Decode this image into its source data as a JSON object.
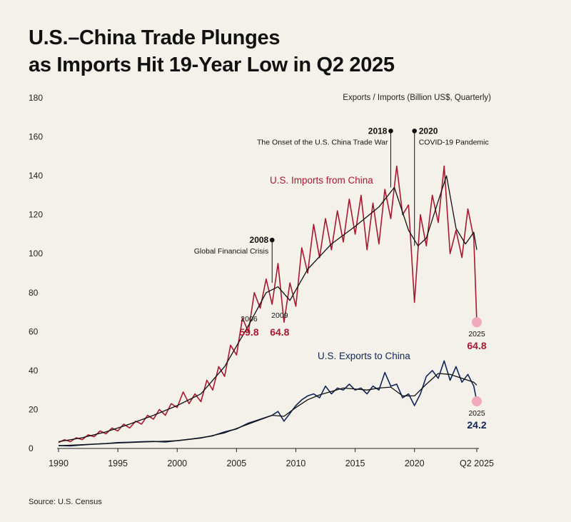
{
  "title_line1": "U.S.–China Trade Plunges",
  "title_line2": "as Imports Hit 19-Year Low in Q2 2025",
  "source": "Source: U.S. Census",
  "colors": {
    "imports": "#a8182f",
    "exports": "#0f2556",
    "trend": "#111111",
    "highlight": "#f0a8bc",
    "axis": "#222222"
  },
  "chart_data": {
    "type": "line",
    "title": "U.S.–China Trade Plunges as Imports Hit 19-Year Low in Q2 2025",
    "ylabel": "Exports / Imports (Billion US$, Quarterly)",
    "xlim": [
      1990,
      2025.5
    ],
    "ylim": [
      0,
      180
    ],
    "y_ticks": [
      0,
      20,
      40,
      60,
      80,
      100,
      120,
      140,
      160,
      180
    ],
    "x_ticks": [
      {
        "value": 1990,
        "label": "1990"
      },
      {
        "value": 1995,
        "label": "1995"
      },
      {
        "value": 2000,
        "label": "2000"
      },
      {
        "value": 2005,
        "label": "2005"
      },
      {
        "value": 2010,
        "label": "2010"
      },
      {
        "value": 2015,
        "label": "2015"
      },
      {
        "value": 2020,
        "label": "2020"
      },
      {
        "value": 2025.25,
        "label": "Q2 2025"
      }
    ],
    "series": [
      {
        "name": "U.S. Imports from China",
        "label": "U.S. Imports from China",
        "points": [
          [
            1990,
            3
          ],
          [
            1990.5,
            4.5
          ],
          [
            1991,
            3.5
          ],
          [
            1991.5,
            5.5
          ],
          [
            1992,
            4.5
          ],
          [
            1992.5,
            7
          ],
          [
            1993,
            6
          ],
          [
            1993.5,
            9
          ],
          [
            1994,
            7.5
          ],
          [
            1994.5,
            10.5
          ],
          [
            1995,
            9
          ],
          [
            1995.5,
            12.5
          ],
          [
            1996,
            10.5
          ],
          [
            1996.5,
            14
          ],
          [
            1997,
            12.5
          ],
          [
            1997.5,
            17
          ],
          [
            1998,
            15
          ],
          [
            1998.5,
            20
          ],
          [
            1999,
            17
          ],
          [
            1999.5,
            23
          ],
          [
            2000,
            21
          ],
          [
            2000.5,
            29
          ],
          [
            2001,
            23
          ],
          [
            2001.5,
            28
          ],
          [
            2002,
            24
          ],
          [
            2002.5,
            35
          ],
          [
            2003,
            30
          ],
          [
            2003.5,
            42
          ],
          [
            2004,
            37
          ],
          [
            2004.5,
            53
          ],
          [
            2005,
            48
          ],
          [
            2005.5,
            67
          ],
          [
            2006,
            59.8
          ],
          [
            2006.5,
            80
          ],
          [
            2007,
            72
          ],
          [
            2007.5,
            87
          ],
          [
            2008,
            74
          ],
          [
            2008.5,
            95
          ],
          [
            2009,
            64.8
          ],
          [
            2009.5,
            85
          ],
          [
            2010,
            73
          ],
          [
            2010.5,
            103
          ],
          [
            2011,
            90
          ],
          [
            2011.5,
            115
          ],
          [
            2012,
            98
          ],
          [
            2012.5,
            118
          ],
          [
            2013,
            102
          ],
          [
            2013.5,
            122
          ],
          [
            2014,
            106
          ],
          [
            2014.5,
            128
          ],
          [
            2015,
            110
          ],
          [
            2015.5,
            130
          ],
          [
            2016,
            102
          ],
          [
            2016.5,
            126
          ],
          [
            2017,
            105
          ],
          [
            2017.5,
            133
          ],
          [
            2018,
            118
          ],
          [
            2018.5,
            145
          ],
          [
            2019,
            120
          ],
          [
            2019.5,
            125
          ],
          [
            2020,
            75
          ],
          [
            2020.5,
            120
          ],
          [
            2021,
            104
          ],
          [
            2021.5,
            130
          ],
          [
            2022,
            116
          ],
          [
            2022.5,
            145
          ],
          [
            2023,
            100
          ],
          [
            2023.5,
            112
          ],
          [
            2024,
            98
          ],
          [
            2024.5,
            123
          ],
          [
            2025,
            108
          ],
          [
            2025.25,
            64.8
          ]
        ]
      },
      {
        "name": "Imports trend",
        "points": [
          [
            1990,
            3.5
          ],
          [
            1992,
            5.5
          ],
          [
            1994,
            8.5
          ],
          [
            1996,
            12.5
          ],
          [
            1998,
            17
          ],
          [
            2000,
            22
          ],
          [
            2002,
            28
          ],
          [
            2004,
            42
          ],
          [
            2006,
            63
          ],
          [
            2007.5,
            80
          ],
          [
            2008.5,
            83
          ],
          [
            2009.5,
            76
          ],
          [
            2011,
            92
          ],
          [
            2013,
            105
          ],
          [
            2015,
            114
          ],
          [
            2017,
            124
          ],
          [
            2018.3,
            134
          ],
          [
            2019.5,
            112
          ],
          [
            2020.3,
            104
          ],
          [
            2021,
            108
          ],
          [
            2022,
            127
          ],
          [
            2022.7,
            140
          ],
          [
            2023.5,
            113
          ],
          [
            2024.3,
            105
          ],
          [
            2025,
            111
          ],
          [
            2025.25,
            102
          ]
        ]
      },
      {
        "name": "U.S. Exports to China",
        "label": "U.S. Exports to China",
        "points": [
          [
            1990,
            1.5
          ],
          [
            1991,
            1.3
          ],
          [
            1992,
            1.8
          ],
          [
            1993,
            2.2
          ],
          [
            1994,
            2.5
          ],
          [
            1995,
            3
          ],
          [
            1996,
            3.2
          ],
          [
            1997,
            3.5
          ],
          [
            1998,
            3.6
          ],
          [
            1999,
            3.3
          ],
          [
            2000,
            4
          ],
          [
            2001,
            4.7
          ],
          [
            2002,
            5.5
          ],
          [
            2003,
            6.5
          ],
          [
            2004,
            8.5
          ],
          [
            2005,
            10
          ],
          [
            2006,
            13
          ],
          [
            2007,
            15
          ],
          [
            2008,
            17
          ],
          [
            2008.5,
            19
          ],
          [
            2009,
            14
          ],
          [
            2009.5,
            18
          ],
          [
            2010,
            22
          ],
          [
            2010.5,
            25
          ],
          [
            2011,
            27
          ],
          [
            2011.5,
            28
          ],
          [
            2012,
            26
          ],
          [
            2012.5,
            32
          ],
          [
            2013,
            28
          ],
          [
            2013.5,
            31
          ],
          [
            2014,
            30
          ],
          [
            2014.5,
            33
          ],
          [
            2015,
            30
          ],
          [
            2015.5,
            31
          ],
          [
            2016,
            28
          ],
          [
            2016.5,
            32
          ],
          [
            2017,
            30
          ],
          [
            2017.5,
            39
          ],
          [
            2018,
            32
          ],
          [
            2018.5,
            33
          ],
          [
            2019,
            26
          ],
          [
            2019.5,
            28
          ],
          [
            2020,
            22
          ],
          [
            2020.5,
            28
          ],
          [
            2021,
            37
          ],
          [
            2021.5,
            40
          ],
          [
            2022,
            36
          ],
          [
            2022.5,
            45
          ],
          [
            2023,
            35
          ],
          [
            2023.5,
            42
          ],
          [
            2024,
            34
          ],
          [
            2024.5,
            38
          ],
          [
            2025,
            32
          ],
          [
            2025.25,
            24.2
          ]
        ]
      },
      {
        "name": "Exports trend",
        "points": [
          [
            1990,
            1.4
          ],
          [
            1995,
            2.8
          ],
          [
            2000,
            4
          ],
          [
            2002,
            5.3
          ],
          [
            2004,
            8
          ],
          [
            2006,
            12.5
          ],
          [
            2008,
            17
          ],
          [
            2009,
            16.5
          ],
          [
            2010,
            21
          ],
          [
            2011,
            25
          ],
          [
            2012,
            27.5
          ],
          [
            2014,
            31
          ],
          [
            2016,
            30
          ],
          [
            2017,
            31
          ],
          [
            2018,
            31.5
          ],
          [
            2019,
            27
          ],
          [
            2020,
            27
          ],
          [
            2021,
            33
          ],
          [
            2022,
            38.5
          ],
          [
            2023,
            38
          ],
          [
            2024,
            36
          ],
          [
            2025,
            34
          ],
          [
            2025.25,
            32.5
          ]
        ]
      }
    ],
    "annotations": [
      {
        "year": "2008",
        "text": "Global Financial Crisis",
        "x": 2008,
        "y_from": 107,
        "y_to": 85
      },
      {
        "year": "2018",
        "text": "The Onset of the U.S. China Trade War",
        "x": 2018,
        "y_from": 163,
        "y_to": 134
      },
      {
        "year": "2020",
        "text": "COVID-19 Pandemic",
        "x": 2020,
        "y_from": 163,
        "y_to": 104
      }
    ],
    "point_labels": [
      {
        "year": "2006",
        "value": "59.8",
        "x": 2006,
        "y": 59.8
      },
      {
        "year": "2009",
        "value": "64.8",
        "x": 2009,
        "y": 64.8
      },
      {
        "year": "2025",
        "value": "64.8",
        "x": 2025.25,
        "y": 64.8,
        "series": "imports"
      },
      {
        "year": "2025",
        "value": "24.2",
        "x": 2025.25,
        "y": 24.2,
        "series": "exports"
      }
    ]
  }
}
